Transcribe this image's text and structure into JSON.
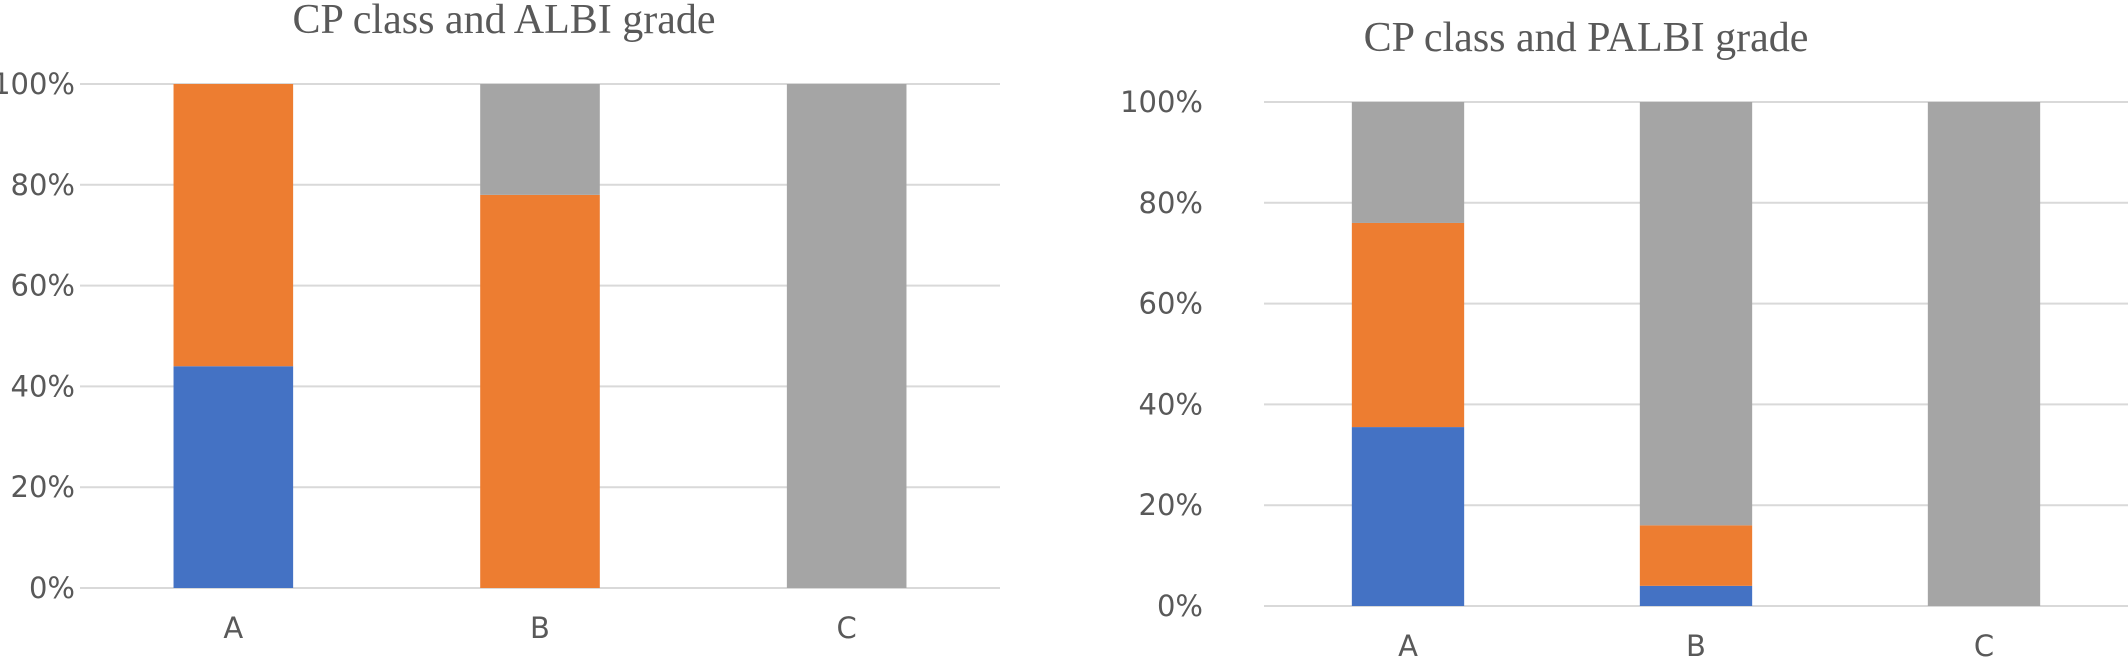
{
  "chart_data": [
    {
      "type": "bar",
      "stacked": true,
      "title": "CP class and ALBI grade",
      "categories": [
        "A",
        "B",
        "C"
      ],
      "series": [
        {
          "color": "#4472c4",
          "values": [
            44,
            0,
            0
          ]
        },
        {
          "color": "#ed7d31",
          "values": [
            56,
            78,
            0
          ]
        },
        {
          "color": "#a5a5a5",
          "values": [
            0,
            22,
            100
          ]
        }
      ],
      "ylim": [
        0,
        100
      ],
      "yticks": [
        "0%",
        "20%",
        "40%",
        "60%",
        "80%",
        "100%"
      ],
      "grid": true,
      "legend": "none"
    },
    {
      "type": "bar",
      "stacked": true,
      "title": "CP class and PALBI grade",
      "categories": [
        "A",
        "B",
        "C"
      ],
      "series": [
        {
          "color": "#4472c4",
          "values": [
            35.5,
            4,
            0
          ]
        },
        {
          "color": "#ed7d31",
          "values": [
            40.5,
            12,
            0
          ]
        },
        {
          "color": "#a5a5a5",
          "values": [
            24,
            84,
            100
          ]
        }
      ],
      "ylim": [
        0,
        100
      ],
      "yticks": [
        "0%",
        "20%",
        "40%",
        "60%",
        "80%",
        "100%"
      ],
      "grid": true,
      "legend": "none"
    }
  ]
}
